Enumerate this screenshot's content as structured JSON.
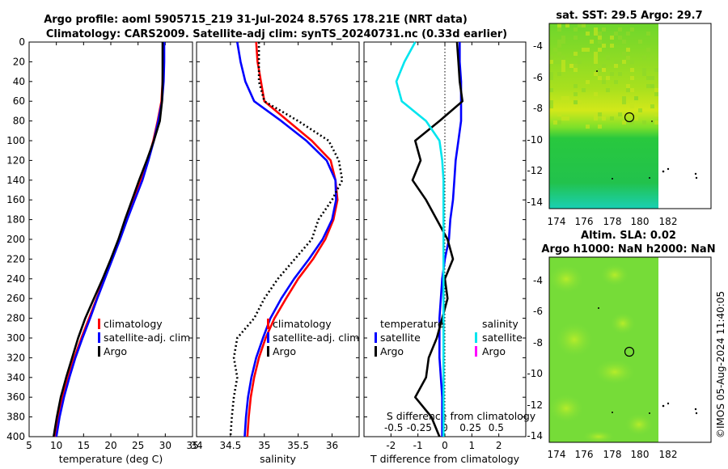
{
  "header": {
    "line1": "Argo profile: aoml 5905715_219 31-Jul-2024 8.576S 178.21E (NRT data)",
    "line2": "Climatology: CARS2009. Satellite-adj clim: synTS_20240731.nc (0.33d earlier)"
  },
  "watermark": "©IMOS 05-Aug-2024 11:40:05",
  "legends": {
    "temp": [
      "climatology",
      "satellite-adj. clim",
      "Argo"
    ],
    "sal": [
      "climatology",
      "satellite-adj. clim",
      "Argo"
    ],
    "diffT_title": "temperature",
    "diffT": [
      "satellite",
      "Argo"
    ],
    "diffS_title": "salinity",
    "diffS": [
      "satellite",
      "Argo"
    ]
  },
  "colors": {
    "climatology": "#ff0000",
    "satellite": "#0000ff",
    "argo": "#000000",
    "sal_sat": "#00e5ee",
    "sal_argo": "#ff00ff",
    "map_green": "#6fd62a",
    "map_yellow": "#c8e800"
  },
  "chart_data": [
    {
      "id": "temp",
      "type": "line",
      "xlabel": "temperature (deg C)",
      "ylabel": "depth",
      "xlim": [
        5,
        35
      ],
      "xticks": [
        5,
        10,
        15,
        20,
        25,
        30,
        35
      ],
      "ylim": [
        0,
        400
      ],
      "yticks": [
        0,
        20,
        40,
        60,
        80,
        100,
        120,
        140,
        160,
        180,
        200,
        220,
        240,
        260,
        280,
        300,
        320,
        340,
        360,
        380,
        400
      ],
      "series": [
        {
          "name": "climatology",
          "color": "#ff0000",
          "style": "solid",
          "x": [
            29.6,
            29.6,
            29.5,
            29.3,
            28.6,
            27.8,
            26.8,
            25.6,
            24.2,
            22.9,
            21.6,
            20.2,
            18.8,
            17.4,
            16.0,
            14.6,
            13.3,
            12.2,
            11.1,
            10.3,
            9.7
          ],
          "y": [
            0,
            20,
            40,
            60,
            80,
            100,
            120,
            140,
            160,
            180,
            200,
            220,
            240,
            260,
            280,
            300,
            320,
            340,
            360,
            380,
            400
          ]
        },
        {
          "name": "satellite-adj. clim",
          "color": "#0000ff",
          "style": "solid",
          "x": [
            29.8,
            29.8,
            29.7,
            29.4,
            28.7,
            27.9,
            26.9,
            25.8,
            24.4,
            23.0,
            21.7,
            20.3,
            18.9,
            17.5,
            16.2,
            14.8,
            13.5,
            12.4,
            11.4,
            10.6,
            10.0
          ],
          "y": [
            0,
            20,
            40,
            60,
            80,
            100,
            120,
            140,
            160,
            180,
            200,
            220,
            240,
            260,
            280,
            300,
            320,
            340,
            360,
            380,
            400
          ]
        },
        {
          "name": "Argo",
          "color": "#000000",
          "style": "solid",
          "x": [
            29.5,
            29.5,
            29.5,
            29.4,
            29.0,
            27.9,
            26.6,
            25.2,
            23.9,
            22.6,
            21.4,
            20.0,
            18.5,
            16.9,
            15.3,
            14.0,
            12.9,
            11.8,
            10.8,
            10.1,
            9.5
          ],
          "y": [
            0,
            20,
            40,
            60,
            80,
            100,
            120,
            140,
            160,
            180,
            200,
            220,
            240,
            260,
            280,
            300,
            320,
            340,
            360,
            380,
            400
          ]
        }
      ]
    },
    {
      "id": "sal",
      "type": "line",
      "xlabel": "salinity",
      "xlim": [
        34,
        36.4
      ],
      "xticks": [
        34,
        34.5,
        35,
        35.5,
        36
      ],
      "ylim": [
        0,
        400
      ],
      "series": [
        {
          "name": "climatology",
          "color": "#ff0000",
          "style": "solid",
          "x": [
            34.88,
            34.9,
            34.95,
            35.0,
            35.35,
            35.7,
            35.98,
            36.05,
            36.08,
            36.02,
            35.9,
            35.72,
            35.5,
            35.32,
            35.15,
            35.02,
            34.92,
            34.85,
            34.8,
            34.77,
            34.75
          ],
          "y": [
            0,
            20,
            40,
            60,
            80,
            100,
            120,
            140,
            160,
            180,
            200,
            220,
            240,
            260,
            280,
            300,
            320,
            340,
            360,
            380,
            400
          ]
        },
        {
          "name": "satellite-adj. clim",
          "color": "#0000ff",
          "style": "solid",
          "x": [
            34.6,
            34.65,
            34.72,
            34.85,
            35.25,
            35.62,
            35.92,
            36.05,
            36.06,
            36.0,
            35.86,
            35.66,
            35.44,
            35.25,
            35.09,
            34.98,
            34.88,
            34.81,
            34.76,
            34.73,
            34.71
          ],
          "y": [
            0,
            20,
            40,
            60,
            80,
            100,
            120,
            140,
            160,
            180,
            200,
            220,
            240,
            260,
            280,
            300,
            320,
            340,
            360,
            380,
            400
          ]
        },
        {
          "name": "Argo",
          "color": "#000000",
          "style": "dotted",
          "x": [
            34.92,
            34.92,
            34.92,
            35.0,
            35.5,
            35.95,
            36.1,
            36.15,
            36.0,
            35.8,
            35.7,
            35.45,
            35.2,
            35.0,
            34.85,
            34.6,
            34.55,
            34.6,
            34.55,
            34.52,
            34.5
          ],
          "y": [
            0,
            20,
            40,
            60,
            80,
            100,
            120,
            140,
            160,
            180,
            200,
            220,
            240,
            260,
            280,
            300,
            320,
            340,
            360,
            380,
            400
          ]
        }
      ]
    },
    {
      "id": "diff",
      "type": "line",
      "xlabel": "T difference from climatology",
      "top_xlabel": "S difference from climatology",
      "xlim": [
        -3,
        3
      ],
      "xticks": [
        -2,
        -1,
        0,
        1,
        2
      ],
      "top_xticks": [
        "-0.5",
        "-0.25",
        "0",
        "0.25",
        "0.5"
      ],
      "ylim": [
        0,
        400
      ],
      "series": [
        {
          "name": "temperature satellite",
          "color": "#0000ff",
          "style": "solid",
          "x": [
            0.55,
            0.55,
            0.6,
            0.6,
            0.6,
            0.5,
            0.4,
            0.35,
            0.3,
            0.2,
            0.15,
            0.0,
            -0.1,
            -0.15,
            -0.2,
            -0.2,
            -0.2,
            -0.15,
            -0.1,
            -0.1,
            -0.1
          ],
          "y": [
            0,
            20,
            40,
            60,
            80,
            100,
            120,
            140,
            160,
            180,
            200,
            220,
            240,
            260,
            280,
            300,
            320,
            340,
            360,
            380,
            400
          ]
        },
        {
          "name": "temperature Argo",
          "color": "#000000",
          "style": "solid",
          "x": [
            0.45,
            0.5,
            0.55,
            0.65,
            -0.2,
            -1.1,
            -0.9,
            -1.2,
            -0.7,
            -0.3,
            0.1,
            0.3,
            0.0,
            0.1,
            -0.1,
            -0.3,
            -0.6,
            -0.7,
            -1.1,
            -0.5,
            -0.2
          ],
          "y": [
            0,
            20,
            40,
            60,
            80,
            100,
            120,
            140,
            160,
            180,
            200,
            220,
            240,
            260,
            280,
            300,
            320,
            340,
            360,
            380,
            400
          ]
        },
        {
          "name": "salinity satellite",
          "color": "#00e5ee",
          "style": "solid",
          "x": [
            -1.1,
            -1.5,
            -1.8,
            -1.6,
            -0.7,
            -0.2,
            -0.1,
            -0.05,
            -0.05,
            -0.05,
            -0.05,
            -0.05,
            -0.05,
            -0.05,
            -0.05,
            -0.05,
            -0.05,
            -0.05,
            -0.05,
            -0.05,
            -0.05
          ],
          "y": [
            0,
            20,
            40,
            60,
            80,
            100,
            120,
            140,
            160,
            180,
            200,
            220,
            240,
            260,
            280,
            300,
            320,
            340,
            360,
            380,
            400
          ]
        }
      ]
    }
  ],
  "maps": [
    {
      "id": "sst",
      "title_line1": "sat. SST: 29.5 Argo: 29.7",
      "title_line2": "",
      "xticks": [
        "174",
        "176",
        "178",
        "180",
        "182"
      ],
      "yticks": [
        "-4",
        "-6",
        "-8",
        "-10",
        "-12",
        "-14"
      ]
    },
    {
      "id": "sla",
      "title_line1": "Altim. SLA: 0.02",
      "title_line2": "Argo h1000: NaN h2000: NaN",
      "xticks": [
        "174",
        "176",
        "178",
        "180",
        "182"
      ],
      "yticks": [
        "-4",
        "-6",
        "-8",
        "-10",
        "-12",
        "-14"
      ]
    }
  ]
}
